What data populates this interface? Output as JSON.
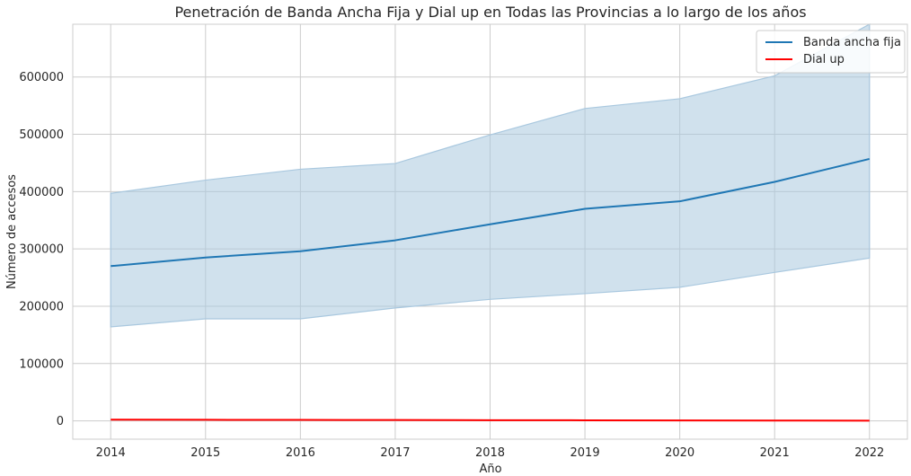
{
  "chart_data": {
    "type": "line",
    "title": "Penetración de Banda Ancha Fija y Dial up en Todas las Provincias a lo largo de los años",
    "xlabel": "Año",
    "ylabel": "Número de accesos",
    "x": [
      2014,
      2015,
      2016,
      2017,
      2018,
      2019,
      2020,
      2021,
      2022
    ],
    "xlim": [
      2013.6,
      2022.4
    ],
    "ylim": [
      -32000,
      692000
    ],
    "yticks": [
      0,
      100000,
      200000,
      300000,
      400000,
      500000,
      600000
    ],
    "grid": true,
    "legend_position": "top-right",
    "series": [
      {
        "name": "Banda ancha fija",
        "color": "#1f77b4",
        "values": [
          270000,
          285000,
          296000,
          315000,
          343000,
          370000,
          383000,
          417000,
          457000
        ],
        "band_low": [
          164000,
          178000,
          178000,
          197000,
          212000,
          222000,
          233000,
          259000,
          284000
        ],
        "band_high": [
          397000,
          420000,
          439000,
          449000,
          499000,
          545000,
          562000,
          602000,
          692000
        ],
        "band_color": "#a9c8df"
      },
      {
        "name": "Dial up",
        "color": "#ff0000",
        "values": [
          2000,
          1800,
          1600,
          1400,
          1200,
          1000,
          700,
          500,
          400
        ]
      }
    ]
  }
}
